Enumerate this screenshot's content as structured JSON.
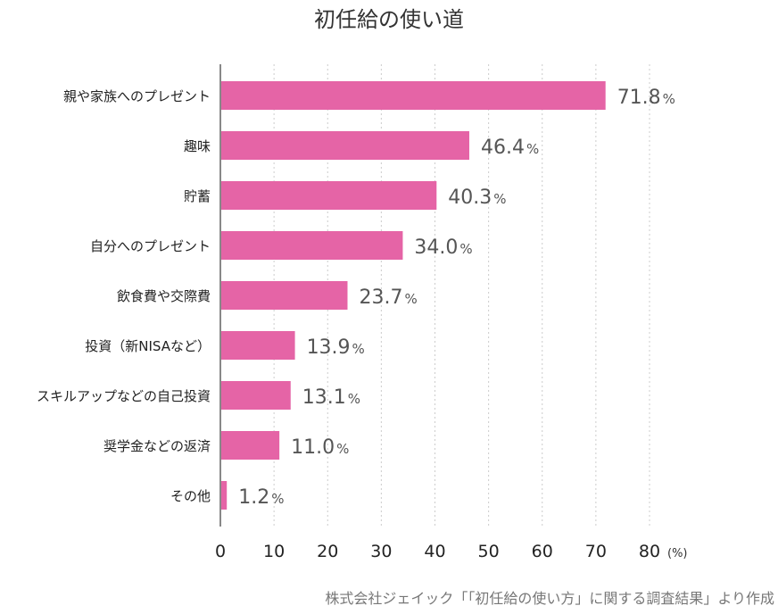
{
  "chart_data": {
    "type": "bar",
    "orientation": "horizontal",
    "title": "初任給の使い道",
    "categories": [
      "親や家族へのプレゼント",
      "趣味",
      "貯蓄",
      "自分へのプレゼント",
      "飲食費や交際費",
      "投資（新NISAなど）",
      "スキルアップなどの自己投資",
      "奨学金などの返済",
      "その他"
    ],
    "values": [
      71.8,
      46.4,
      40.3,
      34.0,
      23.7,
      13.9,
      13.1,
      11.0,
      1.2
    ],
    "value_suffix": "%",
    "xlim": [
      0,
      80
    ],
    "xticks": [
      0,
      10,
      20,
      30,
      40,
      50,
      60,
      70,
      80
    ],
    "xunit": "(%)",
    "grid": "vertical dotted",
    "bar_color": "#e564a6",
    "source": "株式会社ジェイック「「初任給の使い方」に関する調査結果」より作成"
  }
}
